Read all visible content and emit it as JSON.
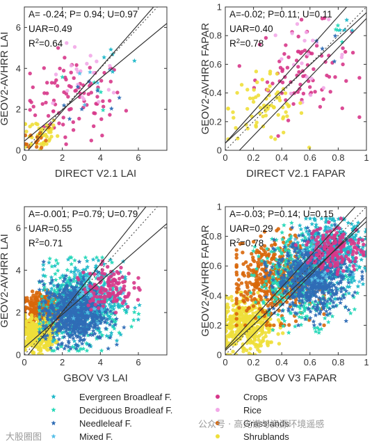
{
  "chart_data": [
    {
      "type": "scatter",
      "xlabel": "DIRECT V2.1 LAI",
      "ylabel": "GEOV2-AVHRR LAI",
      "xlim": [
        0,
        7.5
      ],
      "ylim": [
        0,
        7
      ],
      "xticks": [
        "0",
        "2",
        "4",
        "6"
      ],
      "yticks": [
        "0",
        "2",
        "4",
        "6"
      ],
      "stats": {
        "line1": "A= -0.24; P= 0.94; U=0.97",
        "line2": "UAR=0.49",
        "line3_base": "R",
        "line3_sup": "2",
        "line3_rest": "=0.64"
      },
      "fit_line": {
        "x": [
          0,
          7.5
        ],
        "y": [
          0.45,
          6.2
        ]
      },
      "bounds": [
        {
          "x": [
            0.2,
            6.8
          ],
          "y": [
            0.0,
            7.0
          ]
        }
      ],
      "one_to_one": true,
      "clusters": [
        {
          "cls": "crops",
          "cx": 2.6,
          "cy": 2.5,
          "sx": 1.3,
          "sy": 1.0,
          "n": 90,
          "xmin": 0.3,
          "xmax": 5.8,
          "ymin": 0.3,
          "ymax": 5.3
        },
        {
          "cls": "rice",
          "cx": 3.4,
          "cy": 3.5,
          "sx": 1.0,
          "sy": 0.8,
          "n": 20,
          "xmin": 1.0,
          "xmax": 5.8,
          "ymin": 1.0,
          "ymax": 5.8
        },
        {
          "cls": "shrub",
          "cx": 0.8,
          "cy": 0.8,
          "sx": 0.5,
          "sy": 0.45,
          "n": 45,
          "xmin": 0.05,
          "xmax": 2.2,
          "ymin": 0.05,
          "ymax": 2.2
        },
        {
          "cls": "grass",
          "cx": 0.7,
          "cy": 0.6,
          "sx": 0.4,
          "sy": 0.35,
          "n": 15,
          "xmin": 0.05,
          "xmax": 2,
          "ymin": 0.05,
          "ymax": 2
        },
        {
          "cls": "ebf",
          "cx": 4.6,
          "cy": 4.4,
          "sx": 0.7,
          "sy": 0.6,
          "n": 5,
          "xmin": 2.5,
          "xmax": 6.5,
          "ymin": 2.5,
          "ymax": 6.2
        },
        {
          "cls": "dbf",
          "cx": 3.6,
          "cy": 3.0,
          "sx": 0.6,
          "sy": 0.5,
          "n": 5,
          "xmin": 2,
          "xmax": 6,
          "ymin": 1.5,
          "ymax": 5
        },
        {
          "cls": "nl",
          "cx": 3.2,
          "cy": 2.8,
          "sx": 0.8,
          "sy": 0.6,
          "n": 8,
          "xmin": 1.5,
          "xmax": 6,
          "ymin": 1.2,
          "ymax": 5
        },
        {
          "cls": "mixed",
          "cx": 4.0,
          "cy": 3.6,
          "sx": 0.8,
          "sy": 0.6,
          "n": 5,
          "xmin": 2,
          "xmax": 6,
          "ymin": 2,
          "ymax": 5.5
        }
      ]
    },
    {
      "type": "scatter",
      "xlabel": "DIRECT V2.1 FAPAR",
      "ylabel": "GEOV2-AVHRR FAPAR",
      "xlim": [
        0,
        1
      ],
      "ylim": [
        0,
        1
      ],
      "xticks": [
        "0",
        "0.2",
        "0.4",
        "0.6",
        "0.8",
        "1"
      ],
      "yticks": [
        "0",
        "0.2",
        "0.4",
        "0.6",
        "0.8",
        "1"
      ],
      "stats": {
        "line1": "A=-0.02; P=0.11; U=0.11",
        "line2": "UAR=0.40",
        "line3_base": "R",
        "line3_sup": "2",
        "line3_rest": "=0.78"
      },
      "fit_line": {
        "x": [
          0,
          1
        ],
        "y": [
          0.05,
          0.96
        ]
      },
      "bounds": [
        {
          "x": [
            0,
            0.86
          ],
          "y": [
            0.05,
            1.0
          ]
        },
        {
          "x": [
            0.1,
            1
          ],
          "y": [
            0,
            0.92
          ]
        }
      ],
      "one_to_one": true,
      "clusters": [
        {
          "cls": "crops",
          "cx": 0.55,
          "cy": 0.55,
          "sx": 0.17,
          "sy": 0.16,
          "n": 85,
          "xmin": 0.1,
          "xmax": 0.95,
          "ymin": 0.1,
          "ymax": 0.95
        },
        {
          "cls": "rice",
          "cx": 0.6,
          "cy": 0.65,
          "sx": 0.14,
          "sy": 0.12,
          "n": 20,
          "xmin": 0.2,
          "xmax": 0.95,
          "ymin": 0.2,
          "ymax": 0.95
        },
        {
          "cls": "shrub",
          "cx": 0.28,
          "cy": 0.3,
          "sx": 0.14,
          "sy": 0.12,
          "n": 70,
          "xmin": 0.02,
          "xmax": 0.62,
          "ymin": 0.02,
          "ymax": 0.55
        },
        {
          "cls": "ebf",
          "cx": 0.86,
          "cy": 0.86,
          "sx": 0.04,
          "sy": 0.04,
          "n": 4,
          "xmin": 0.75,
          "xmax": 0.95,
          "ymin": 0.75,
          "ymax": 0.95
        },
        {
          "cls": "dbf",
          "cx": 0.82,
          "cy": 0.83,
          "sx": 0.05,
          "sy": 0.05,
          "n": 4,
          "xmin": 0.7,
          "xmax": 0.95,
          "ymin": 0.7,
          "ymax": 0.95
        },
        {
          "cls": "nl",
          "cx": 0.7,
          "cy": 0.72,
          "sx": 0.08,
          "sy": 0.06,
          "n": 4,
          "xmin": 0.5,
          "xmax": 0.95,
          "ymin": 0.5,
          "ymax": 0.95
        }
      ]
    },
    {
      "type": "scatter",
      "xlabel": "GBOV V3 LAI",
      "ylabel": "GEOV2-AVHRR LAI",
      "xlim": [
        0,
        7.5
      ],
      "ylim": [
        0,
        7
      ],
      "xticks": [
        "0",
        "2",
        "4",
        "6"
      ],
      "yticks": [
        "0",
        "2",
        "4",
        "6"
      ],
      "stats": {
        "line1": "A=-0.001; P=0.79; U=0.79",
        "line2": "UAR=0.55",
        "line3_base": "R",
        "line3_sup": "2",
        "line3_rest": "=0.71"
      },
      "fit_line": {
        "x": [
          0,
          7.5
        ],
        "y": [
          0.35,
          6.2
        ]
      },
      "bounds": [
        {
          "x": [
            0.2,
            6.4
          ],
          "y": [
            0.0,
            7.0
          ]
        }
      ],
      "one_to_one": true,
      "clusters": [
        {
          "cls": "grass",
          "cx": 0.9,
          "cy": 2.1,
          "sx": 0.55,
          "sy": 0.4,
          "n": 320,
          "xmin": 0.02,
          "xmax": 2.8,
          "ymin": 0.8,
          "ymax": 3.3
        },
        {
          "cls": "shrub",
          "cx": 0.7,
          "cy": 1.0,
          "sx": 0.45,
          "sy": 0.4,
          "n": 320,
          "xmin": 0.02,
          "xmax": 2.4,
          "ymin": 0.02,
          "ymax": 2.0
        },
        {
          "cls": "dbf",
          "cx": 2.9,
          "cy": 2.3,
          "sx": 1.05,
          "sy": 0.9,
          "n": 380,
          "xmin": 0.8,
          "xmax": 6.2,
          "ymin": 0.2,
          "ymax": 4.6
        },
        {
          "cls": "ebf",
          "cx": 3.2,
          "cy": 2.6,
          "sx": 1.0,
          "sy": 0.9,
          "n": 380,
          "xmin": 1.0,
          "xmax": 6.4,
          "ymin": 0.4,
          "ymax": 5.8
        },
        {
          "cls": "nl",
          "cx": 2.6,
          "cy": 2.0,
          "sx": 0.8,
          "sy": 0.7,
          "n": 650,
          "xmin": 0.8,
          "xmax": 5.4,
          "ymin": 0.3,
          "ymax": 4.4
        },
        {
          "cls": "mixed",
          "cx": 3.8,
          "cy": 2.9,
          "sx": 0.8,
          "sy": 0.6,
          "n": 40,
          "xmin": 2,
          "xmax": 6,
          "ymin": 1.5,
          "ymax": 4.8
        },
        {
          "cls": "crops",
          "cx": 4.4,
          "cy": 3.2,
          "sx": 0.65,
          "sy": 0.5,
          "n": 120,
          "xmin": 2.8,
          "xmax": 6.2,
          "ymin": 2.0,
          "ymax": 4.8
        }
      ]
    },
    {
      "type": "scatter",
      "xlabel": "GBOV V3 FAPAR",
      "ylabel": "GEOV2-AVHRR FAPAR",
      "xlim": [
        0,
        1
      ],
      "ylim": [
        0,
        1
      ],
      "xticks": [
        "0",
        "0.2",
        "0.4",
        "0.6",
        "0.8",
        "1"
      ],
      "yticks": [
        "0",
        "0.2",
        "0.4",
        "0.6",
        "0.8",
        "1"
      ],
      "stats": {
        "line1": "A=-0.03; P=0.14; U=0.15",
        "line2": "UAR=0.29",
        "line3_base": "R",
        "line3_sup": "2",
        "line3_rest": "=0.78"
      },
      "fit_line": {
        "x": [
          0,
          1
        ],
        "y": [
          0.03,
          0.9
        ]
      },
      "bounds": [
        {
          "x": [
            0,
            0.92
          ],
          "y": [
            0.04,
            1.0
          ]
        },
        {
          "x": [
            0.06,
            1
          ],
          "y": [
            0,
            0.93
          ]
        }
      ],
      "one_to_one": true,
      "clusters": [
        {
          "cls": "shrub",
          "cx": 0.15,
          "cy": 0.2,
          "sx": 0.1,
          "sy": 0.09,
          "n": 420,
          "xmin": 0.0,
          "xmax": 0.42,
          "ymin": 0.0,
          "ymax": 0.42
        },
        {
          "cls": "grass",
          "cx": 0.35,
          "cy": 0.5,
          "sx": 0.14,
          "sy": 0.13,
          "n": 480,
          "xmin": 0.08,
          "xmax": 0.7,
          "ymin": 0.2,
          "ymax": 0.85
        },
        {
          "cls": "dbf",
          "cx": 0.55,
          "cy": 0.52,
          "sx": 0.16,
          "sy": 0.15,
          "n": 380,
          "xmin": 0.18,
          "xmax": 0.95,
          "ymin": 0.15,
          "ymax": 0.9
        },
        {
          "cls": "ebf",
          "cx": 0.75,
          "cy": 0.7,
          "sx": 0.12,
          "sy": 0.11,
          "n": 420,
          "xmin": 0.3,
          "xmax": 1.0,
          "ymin": 0.3,
          "ymax": 0.92
        },
        {
          "cls": "nl",
          "cx": 0.62,
          "cy": 0.52,
          "sx": 0.13,
          "sy": 0.12,
          "n": 650,
          "xmin": 0.28,
          "xmax": 0.97,
          "ymin": 0.2,
          "ymax": 0.88
        },
        {
          "cls": "mixed",
          "cx": 0.72,
          "cy": 0.66,
          "sx": 0.1,
          "sy": 0.08,
          "n": 40,
          "xmin": 0.4,
          "xmax": 0.95,
          "ymin": 0.35,
          "ymax": 0.9
        },
        {
          "cls": "crops",
          "cx": 0.78,
          "cy": 0.72,
          "sx": 0.1,
          "sy": 0.08,
          "n": 160,
          "xmin": 0.5,
          "xmax": 0.98,
          "ymin": 0.45,
          "ymax": 0.92
        }
      ]
    }
  ],
  "legend": {
    "left": [
      {
        "key": "ebf",
        "label": "Evergreen Broadleaf F."
      },
      {
        "key": "dbf",
        "label": "Deciduous Broadleaf F."
      },
      {
        "key": "nl",
        "label": "Needleleaf F."
      },
      {
        "key": "mixed",
        "label": "Mixed F."
      }
    ],
    "right": [
      {
        "key": "crops",
        "label": "Crops"
      },
      {
        "key": "rice",
        "label": "Rice"
      },
      {
        "key": "grass",
        "label": "Grasslands"
      },
      {
        "key": "shrub",
        "label": "Shrublands"
      }
    ]
  },
  "classes": {
    "ebf": {
      "color": "#1fb8c9",
      "marker": "star"
    },
    "dbf": {
      "color": "#25d8b8",
      "marker": "star"
    },
    "nl": {
      "color": "#2f6db6",
      "marker": "star"
    },
    "mixed": {
      "color": "#58c0e8",
      "marker": "star"
    },
    "crops": {
      "color": "#d7378a",
      "marker": "dot"
    },
    "rice": {
      "color": "#f2a8e8",
      "marker": "dot"
    },
    "grass": {
      "color": "#d8670a",
      "marker": "dot"
    },
    "shrub": {
      "color": "#eedf3a",
      "marker": "dot"
    }
  },
  "watermark": {
    "left": "大股圈图",
    "right": "公众号 · 高光谱与资源环境遥感"
  }
}
